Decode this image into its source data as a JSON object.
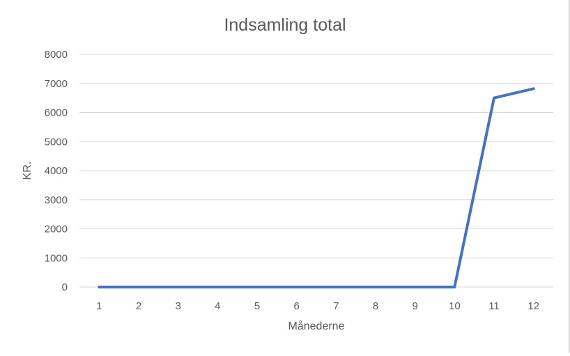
{
  "chart_data": {
    "type": "line",
    "title": "Indsamling total",
    "xlabel": "Månederne",
    "ylabel": "KR.",
    "categories": [
      "1",
      "2",
      "3",
      "4",
      "5",
      "6",
      "7",
      "8",
      "9",
      "10",
      "11",
      "12"
    ],
    "series": [
      {
        "values": [
          0,
          0,
          0,
          0,
          0,
          0,
          0,
          0,
          0,
          0,
          6500,
          6820
        ]
      }
    ],
    "yticks": [
      "0",
      "1000",
      "2000",
      "3000",
      "4000",
      "5000",
      "6000",
      "7000",
      "8000"
    ],
    "ylim": [
      0,
      8000
    ],
    "grid": true,
    "legend": "none",
    "colors": {
      "series": "#4472c4",
      "grid": "#d9d9d9",
      "text": "#595959"
    }
  }
}
